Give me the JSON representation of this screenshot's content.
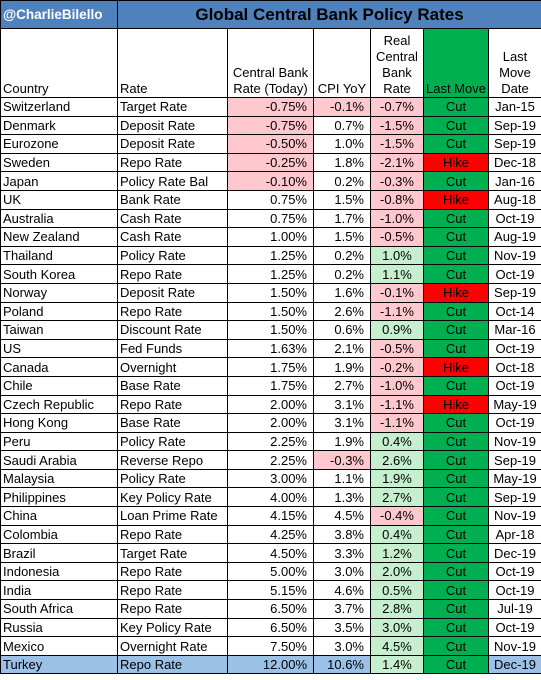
{
  "handle": "@CharlieBilello",
  "title": "Global Central Bank Policy Rates",
  "headers": {
    "country": "Country",
    "rate": "Rate",
    "cb_rate": "Central Bank Rate (Today)",
    "cpi": "CPI YoY",
    "real": "Real Central Bank Rate",
    "last_move": "Last Move",
    "last_move_date": "Last Move Date"
  },
  "rows": [
    {
      "country": "Switzerland",
      "rate": "Target Rate",
      "cb": "-0.75%",
      "cpi": "-0.1%",
      "real": "-0.7%",
      "move": "Cut",
      "date": "Jan-15",
      "cb_neg": true,
      "cpi_neg": true,
      "real_neg": true
    },
    {
      "country": "Denmark",
      "rate": "Deposit Rate",
      "cb": "-0.75%",
      "cpi": "0.7%",
      "real": "-1.5%",
      "move": "Cut",
      "date": "Sep-19",
      "cb_neg": true,
      "cpi_neg": false,
      "real_neg": true
    },
    {
      "country": "Eurozone",
      "rate": "Deposit Rate",
      "cb": "-0.50%",
      "cpi": "1.0%",
      "real": "-1.5%",
      "move": "Cut",
      "date": "Sep-19",
      "cb_neg": true,
      "cpi_neg": false,
      "real_neg": true
    },
    {
      "country": "Sweden",
      "rate": "Repo Rate",
      "cb": "-0.25%",
      "cpi": "1.8%",
      "real": "-2.1%",
      "move": "Hike",
      "date": "Dec-18",
      "cb_neg": true,
      "cpi_neg": false,
      "real_neg": true
    },
    {
      "country": "Japan",
      "rate": "Policy Rate Bal",
      "cb": "-0.10%",
      "cpi": "0.2%",
      "real": "-0.3%",
      "move": "Cut",
      "date": "Jan-16",
      "cb_neg": true,
      "cpi_neg": false,
      "real_neg": true
    },
    {
      "country": "UK",
      "rate": "Bank Rate",
      "cb": "0.75%",
      "cpi": "1.5%",
      "real": "-0.8%",
      "move": "Hike",
      "date": "Aug-18",
      "cb_neg": false,
      "cpi_neg": false,
      "real_neg": true
    },
    {
      "country": "Australia",
      "rate": "Cash Rate",
      "cb": "0.75%",
      "cpi": "1.7%",
      "real": "-1.0%",
      "move": "Cut",
      "date": "Oct-19",
      "cb_neg": false,
      "cpi_neg": false,
      "real_neg": true
    },
    {
      "country": "New Zealand",
      "rate": "Cash Rate",
      "cb": "1.00%",
      "cpi": "1.5%",
      "real": "-0.5%",
      "move": "Cut",
      "date": "Aug-19",
      "cb_neg": false,
      "cpi_neg": false,
      "real_neg": true
    },
    {
      "country": "Thailand",
      "rate": "Policy Rate",
      "cb": "1.25%",
      "cpi": "0.2%",
      "real": "1.0%",
      "move": "Cut",
      "date": "Nov-19",
      "cb_neg": false,
      "cpi_neg": false,
      "real_neg": false
    },
    {
      "country": "South Korea",
      "rate": "Repo Rate",
      "cb": "1.25%",
      "cpi": "0.2%",
      "real": "1.1%",
      "move": "Cut",
      "date": "Oct-19",
      "cb_neg": false,
      "cpi_neg": false,
      "real_neg": false
    },
    {
      "country": "Norway",
      "rate": "Deposit Rate",
      "cb": "1.50%",
      "cpi": "1.6%",
      "real": "-0.1%",
      "move": "Hike",
      "date": "Sep-19",
      "cb_neg": false,
      "cpi_neg": false,
      "real_neg": true
    },
    {
      "country": "Poland",
      "rate": "Repo Rate",
      "cb": "1.50%",
      "cpi": "2.6%",
      "real": "-1.1%",
      "move": "Cut",
      "date": "Oct-14",
      "cb_neg": false,
      "cpi_neg": false,
      "real_neg": true
    },
    {
      "country": "Taiwan",
      "rate": "Discount Rate",
      "cb": "1.50%",
      "cpi": "0.6%",
      "real": "0.9%",
      "move": "Cut",
      "date": "Mar-16",
      "cb_neg": false,
      "cpi_neg": false,
      "real_neg": false
    },
    {
      "country": "US",
      "rate": "Fed Funds",
      "cb": "1.63%",
      "cpi": "2.1%",
      "real": "-0.5%",
      "move": "Cut",
      "date": "Oct-19",
      "cb_neg": false,
      "cpi_neg": false,
      "real_neg": true
    },
    {
      "country": "Canada",
      "rate": "Overnight",
      "cb": "1.75%",
      "cpi": "1.9%",
      "real": "-0.2%",
      "move": "Hike",
      "date": "Oct-18",
      "cb_neg": false,
      "cpi_neg": false,
      "real_neg": true
    },
    {
      "country": "Chile",
      "rate": "Base Rate",
      "cb": "1.75%",
      "cpi": "2.7%",
      "real": "-1.0%",
      "move": "Cut",
      "date": "Oct-19",
      "cb_neg": false,
      "cpi_neg": false,
      "real_neg": true
    },
    {
      "country": "Czech Republic",
      "rate": "Repo Rate",
      "cb": "2.00%",
      "cpi": "3.1%",
      "real": "-1.1%",
      "move": "Hike",
      "date": "May-19",
      "cb_neg": false,
      "cpi_neg": false,
      "real_neg": true
    },
    {
      "country": "Hong Kong",
      "rate": "Base Rate",
      "cb": "2.00%",
      "cpi": "3.1%",
      "real": "-1.1%",
      "move": "Cut",
      "date": "Oct-19",
      "cb_neg": false,
      "cpi_neg": false,
      "real_neg": true
    },
    {
      "country": "Peru",
      "rate": "Policy Rate",
      "cb": "2.25%",
      "cpi": "1.9%",
      "real": "0.4%",
      "move": "Cut",
      "date": "Nov-19",
      "cb_neg": false,
      "cpi_neg": false,
      "real_neg": false
    },
    {
      "country": "Saudi Arabia",
      "rate": "Reverse Repo",
      "cb": "2.25%",
      "cpi": "-0.3%",
      "real": "2.6%",
      "move": "Cut",
      "date": "Sep-19",
      "cb_neg": false,
      "cpi_neg": true,
      "real_neg": false
    },
    {
      "country": "Malaysia",
      "rate": "Policy Rate",
      "cb": "3.00%",
      "cpi": "1.1%",
      "real": "1.9%",
      "move": "Cut",
      "date": "May-19",
      "cb_neg": false,
      "cpi_neg": false,
      "real_neg": false
    },
    {
      "country": "Philippines",
      "rate": "Key Policy Rate",
      "cb": "4.00%",
      "cpi": "1.3%",
      "real": "2.7%",
      "move": "Cut",
      "date": "Sep-19",
      "cb_neg": false,
      "cpi_neg": false,
      "real_neg": false
    },
    {
      "country": "China",
      "rate": "Loan Prime Rate",
      "cb": "4.15%",
      "cpi": "4.5%",
      "real": "-0.4%",
      "move": "Cut",
      "date": "Nov-19",
      "cb_neg": false,
      "cpi_neg": false,
      "real_neg": true
    },
    {
      "country": "Colombia",
      "rate": "Repo Rate",
      "cb": "4.25%",
      "cpi": "3.8%",
      "real": "0.4%",
      "move": "Cut",
      "date": "Apr-18",
      "cb_neg": false,
      "cpi_neg": false,
      "real_neg": false
    },
    {
      "country": "Brazil",
      "rate": "Target Rate",
      "cb": "4.50%",
      "cpi": "3.3%",
      "real": "1.2%",
      "move": "Cut",
      "date": "Dec-19",
      "cb_neg": false,
      "cpi_neg": false,
      "real_neg": false
    },
    {
      "country": "Indonesia",
      "rate": "Repo Rate",
      "cb": "5.00%",
      "cpi": "3.0%",
      "real": "2.0%",
      "move": "Cut",
      "date": "Oct-19",
      "cb_neg": false,
      "cpi_neg": false,
      "real_neg": false
    },
    {
      "country": "India",
      "rate": "Repo Rate",
      "cb": "5.15%",
      "cpi": "4.6%",
      "real": "0.5%",
      "move": "Cut",
      "date": "Oct-19",
      "cb_neg": false,
      "cpi_neg": false,
      "real_neg": false
    },
    {
      "country": "South Africa",
      "rate": "Repo Rate",
      "cb": "6.50%",
      "cpi": "3.7%",
      "real": "2.8%",
      "move": "Cut",
      "date": "Jul-19",
      "cb_neg": false,
      "cpi_neg": false,
      "real_neg": false
    },
    {
      "country": "Russia",
      "rate": "Key Policy Rate",
      "cb": "6.50%",
      "cpi": "3.5%",
      "real": "3.0%",
      "move": "Cut",
      "date": "Oct-19",
      "cb_neg": false,
      "cpi_neg": false,
      "real_neg": false
    },
    {
      "country": "Mexico",
      "rate": "Overnight Rate",
      "cb": "7.50%",
      "cpi": "3.0%",
      "real": "4.5%",
      "move": "Cut",
      "date": "Nov-19",
      "cb_neg": false,
      "cpi_neg": false,
      "real_neg": false
    },
    {
      "country": "Turkey",
      "rate": "Repo Rate",
      "cb": "12.00%",
      "cpi": "10.6%",
      "real": "1.4%",
      "move": "Cut",
      "date": "Dec-19",
      "cb_neg": false,
      "cpi_neg": false,
      "real_neg": false,
      "highlight": true
    }
  ],
  "colors": {
    "title_bg": "#4f81bd",
    "negative_bg": "#ffc7ce",
    "positive_bg": "#c6efce",
    "cut_bg": "#00b050",
    "hike_bg": "#ff0000",
    "highlight_bg": "#9bc2e6"
  }
}
